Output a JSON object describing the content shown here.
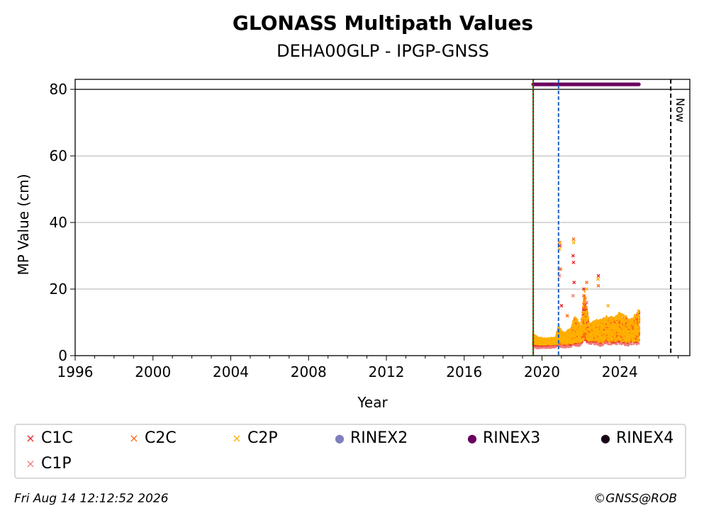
{
  "chart_data": {
    "type": "scatter",
    "title": "GLONASS Multipath Values",
    "subtitle": "DEHA00GLP - IPGP-GNSS",
    "xlabel": "Year",
    "ylabel": "MP Value (cm)",
    "xlim": [
      1996,
      2027.6
    ],
    "ylim": [
      0,
      83
    ],
    "x_ticks": [
      "1996",
      "2000",
      "2004",
      "2008",
      "2012",
      "2016",
      "2020",
      "2024"
    ],
    "y_ticks": [
      "0",
      "20",
      "40",
      "60",
      "80"
    ],
    "grid": "horizontal",
    "reference_line_y": 80,
    "now_label": "Now",
    "now_year": 2026.62,
    "event_lines": [
      {
        "year": 2019.55,
        "color": "#008000",
        "style": "solid"
      },
      {
        "year": 2019.55,
        "color": "#cc0000",
        "style": "dotted"
      },
      {
        "year": 2020.85,
        "color": "#1f5fbf",
        "style": "dashed"
      }
    ],
    "rinex3_band": {
      "x": [
        2019.55,
        2025.0
      ],
      "y": 81.5
    },
    "series": [
      {
        "name": "C1C",
        "color": "#e8262a",
        "marker": "x",
        "points": [
          [
            2020.9,
            34
          ],
          [
            2020.92,
            33
          ],
          [
            2021.6,
            30
          ],
          [
            2021.62,
            28
          ],
          [
            2022.9,
            24
          ],
          [
            2021.65,
            22
          ],
          [
            2022.15,
            20
          ],
          [
            2021.0,
            15
          ]
        ]
      },
      {
        "name": "C2C",
        "color": "#ff6a13",
        "marker": "x",
        "points": [
          [
            2021.62,
            35
          ],
          [
            2020.95,
            26
          ],
          [
            2022.3,
            22
          ],
          [
            2022.15,
            18
          ],
          [
            2022.9,
            21
          ],
          [
            2021.3,
            12
          ]
        ]
      },
      {
        "name": "C2P",
        "color": "#ffb000",
        "marker": "x",
        "points": [
          [
            2020.92,
            34
          ],
          [
            2020.9,
            32
          ],
          [
            2021.63,
            34
          ],
          [
            2022.88,
            23
          ],
          [
            2022.28,
            20
          ],
          [
            2023.4,
            15
          ]
        ]
      },
      {
        "name": "RINEX2",
        "color": "#7f7fbf",
        "marker": "dot",
        "points": []
      },
      {
        "name": "RINEX3",
        "color": "#6a005f",
        "marker": "dot",
        "points": [
          [
            2019.55,
            81.5
          ],
          [
            2025.0,
            81.5
          ]
        ]
      },
      {
        "name": "RINEX4",
        "color": "#1a0014",
        "marker": "dot",
        "points": []
      },
      {
        "name": "C1P",
        "color": "#f07a7a",
        "marker": "x",
        "points": [
          [
            2020.88,
            26
          ],
          [
            2020.9,
            24
          ],
          [
            2021.6,
            18
          ],
          [
            2022.3,
            16
          ]
        ]
      }
    ],
    "cluster": {
      "x": [
        2019.55,
        2025.0
      ],
      "profile": [
        [
          2019.55,
          3.0,
          6.5
        ],
        [
          2019.8,
          2.8,
          5.5
        ],
        [
          2020.2,
          2.9,
          5.2
        ],
        [
          2020.7,
          3.0,
          5.5
        ],
        [
          2020.85,
          3.2,
          9.0
        ],
        [
          2021.1,
          3.0,
          7.0
        ],
        [
          2021.5,
          3.2,
          8.5
        ],
        [
          2021.7,
          3.5,
          12.0
        ],
        [
          2022.0,
          3.5,
          9.0
        ],
        [
          2022.2,
          4.5,
          20.0
        ],
        [
          2022.4,
          4.0,
          10.0
        ],
        [
          2022.7,
          4.0,
          10.5
        ],
        [
          2023.0,
          3.5,
          11.0
        ],
        [
          2023.3,
          4.0,
          12.0
        ],
        [
          2023.7,
          3.8,
          11.5
        ],
        [
          2024.0,
          4.0,
          13.0
        ],
        [
          2024.3,
          3.5,
          12.0
        ],
        [
          2024.6,
          3.8,
          11.0
        ],
        [
          2025.0,
          4.0,
          14.0
        ]
      ]
    }
  },
  "legend": [
    {
      "label": "C1C",
      "color": "#e8262a",
      "marker": "x"
    },
    {
      "label": "C2C",
      "color": "#ff6a13",
      "marker": "x"
    },
    {
      "label": "C2P",
      "color": "#ffb000",
      "marker": "x"
    },
    {
      "label": "RINEX2",
      "color": "#7f7fbf",
      "marker": "dot"
    },
    {
      "label": "RINEX3",
      "color": "#6a005f",
      "marker": "dot"
    },
    {
      "label": "RINEX4",
      "color": "#1a0014",
      "marker": "dot"
    },
    {
      "label": "C1P",
      "color": "#f07a7a",
      "marker": "x"
    }
  ],
  "footer": {
    "timestamp": "Fri Aug 14 12:12:52 2026",
    "credit": "©GNSS@ROB"
  }
}
